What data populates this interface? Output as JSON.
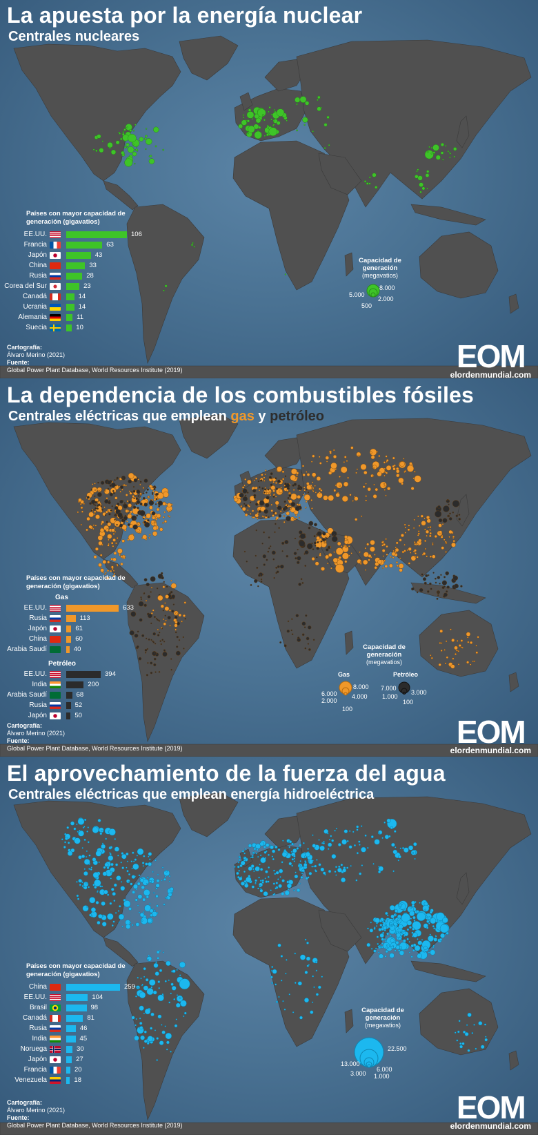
{
  "credits": {
    "cartography_label": "Cartografía:",
    "author": "Álvaro Merino (2021)",
    "source_label": "Fuente:",
    "source": "Global Power Plant Database, World Resources Institute (2019)"
  },
  "logo": {
    "word": "EOM",
    "url": "elordenmundial.com"
  },
  "panels": [
    {
      "title": "La apuesta por la energía nuclear",
      "subtitle": "Centrales nucleares",
      "legend_title": "Países con mayor capacidad de generación (gigavatios)",
      "bar_color": "#3ec428",
      "dot_color": "#3ec428",
      "rows": [
        {
          "name": "EE.UU.",
          "value": "106",
          "flag": "us"
        },
        {
          "name": "Francia",
          "value": "63",
          "flag": "fr"
        },
        {
          "name": "Japón",
          "value": "43",
          "flag": "jp"
        },
        {
          "name": "China",
          "value": "33",
          "flag": "cn"
        },
        {
          "name": "Rusia",
          "value": "28",
          "flag": "ru"
        },
        {
          "name": "Corea del Sur",
          "value": "23",
          "flag": "kr"
        },
        {
          "name": "Canadá",
          "value": "14",
          "flag": "ca"
        },
        {
          "name": "Ucrania",
          "value": "14",
          "flag": "ua"
        },
        {
          "name": "Alemania",
          "value": "11",
          "flag": "de"
        },
        {
          "name": "Suecia",
          "value": "10",
          "flag": "se"
        }
      ],
      "size_legend": {
        "heading": "Capacidad de generación",
        "unit": "(megavatios)",
        "ticks": [
          "8.000",
          "5.000",
          "2.000",
          "500"
        ]
      }
    },
    {
      "title": "La dependencia de los combustibles fósiles",
      "subtitle_pre": "Centrales eléctricas que emplean",
      "subtitle_gas": "gas",
      "subtitle_mid": "y",
      "subtitle_oil": "petróleo",
      "legend_title": "Países con mayor capacidad de generación (gigavatios)",
      "gas_color": "#f0982a",
      "oil_color": "#2b2b2b",
      "gas_label": "Gas",
      "oil_label": "Petróleo",
      "gas_rows": [
        {
          "name": "EE.UU.",
          "value": "633",
          "flag": "us"
        },
        {
          "name": "Rusia",
          "value": "113",
          "flag": "ru"
        },
        {
          "name": "Japón",
          "value": "61",
          "flag": "jp"
        },
        {
          "name": "China",
          "value": "60",
          "flag": "cn"
        },
        {
          "name": "Arabia Saudí",
          "value": "40",
          "flag": "sa"
        }
      ],
      "oil_rows": [
        {
          "name": "EE.UU.",
          "value": "394",
          "flag": "us"
        },
        {
          "name": "India",
          "value": "200",
          "flag": "in"
        },
        {
          "name": "Arabia Saudí",
          "value": "68",
          "flag": "sa"
        },
        {
          "name": "Rusia",
          "value": "52",
          "flag": "ru"
        },
        {
          "name": "Japón",
          "value": "50",
          "flag": "jp"
        }
      ],
      "size_legend": {
        "heading": "Capacidad de generación",
        "unit": "(megavatios)",
        "gas_label": "Gas",
        "oil_label": "Petróleo",
        "gas_ticks": [
          "8.000",
          "6.000",
          "4.000",
          "2.000",
          "100"
        ],
        "oil_ticks": [
          "7.000",
          "3.000",
          "1.000",
          "100"
        ]
      }
    },
    {
      "title": "El aprovechamiento de la fuerza del agua",
      "subtitle": "Centrales eléctricas que emplean energía hidroeléctrica",
      "legend_title": "Países con mayor capacidad de generación (gigavatios)",
      "bar_color": "#1cb8ef",
      "dot_color": "#1cb8ef",
      "rows": [
        {
          "name": "China",
          "value": "259",
          "flag": "cn"
        },
        {
          "name": "EE.UU.",
          "value": "104",
          "flag": "us"
        },
        {
          "name": "Brasil",
          "value": "98",
          "flag": "br"
        },
        {
          "name": "Canadá",
          "value": "81",
          "flag": "ca"
        },
        {
          "name": "Rusia",
          "value": "46",
          "flag": "ru"
        },
        {
          "name": "India",
          "value": "45",
          "flag": "in"
        },
        {
          "name": "Noruega",
          "value": "30",
          "flag": "no"
        },
        {
          "name": "Japón",
          "value": "27",
          "flag": "jp"
        },
        {
          "name": "Francia",
          "value": "20",
          "flag": "fr"
        },
        {
          "name": "Venezuela",
          "value": "18",
          "flag": "ve"
        }
      ],
      "size_legend": {
        "heading": "Capacidad de generación",
        "unit": "(megavatios)",
        "ticks": [
          "22.500",
          "13.000",
          "6.000",
          "3.000",
          "1.000"
        ]
      }
    }
  ],
  "colors": {
    "land": "#505050",
    "ocean": "#4a7293"
  }
}
